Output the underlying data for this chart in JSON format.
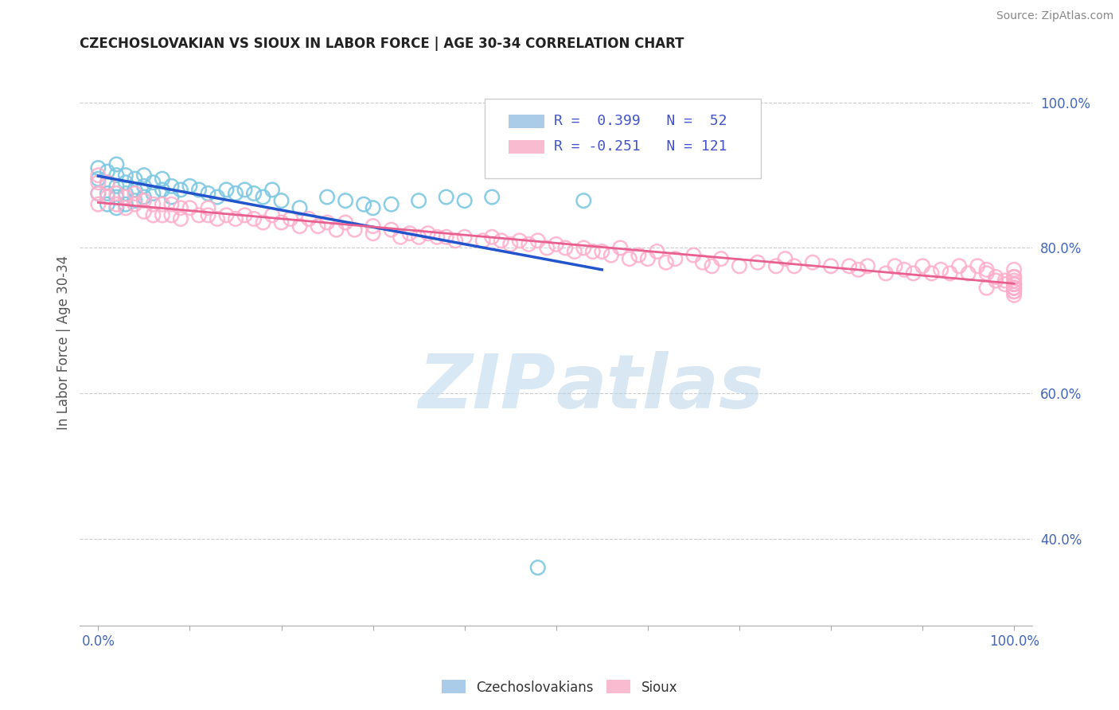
{
  "title": "CZECHOSLOVAKIAN VS SIOUX IN LABOR FORCE | AGE 30-34 CORRELATION CHART",
  "source": "Source: ZipAtlas.com",
  "ylabel": "In Labor Force | Age 30-34",
  "xlim": [
    -0.02,
    1.02
  ],
  "ylim": [
    0.28,
    1.06
  ],
  "xtick_pos": [
    0.0,
    0.1,
    0.2,
    0.3,
    0.4,
    0.5,
    0.6,
    0.7,
    0.8,
    0.9,
    1.0
  ],
  "xtick_labels": [
    "0.0%",
    "",
    "",
    "",
    "",
    "",
    "",
    "",
    "",
    "",
    "100.0%"
  ],
  "ytick_pos": [
    0.4,
    0.6,
    0.8,
    1.0
  ],
  "ytick_labels": [
    "40.0%",
    "60.0%",
    "80.0%",
    "100.0%"
  ],
  "czech_color": "#7ec8e3",
  "sioux_color": "#ffaec9",
  "czech_line_color": "#2255cc",
  "sioux_line_color": "#e86090",
  "background_color": "#ffffff",
  "grid_color": "#cccccc",
  "watermark_color": "#c8dff0",
  "czech_x": [
    0.0,
    0.0,
    0.0,
    0.01,
    0.01,
    0.01,
    0.01,
    0.02,
    0.02,
    0.02,
    0.02,
    0.02,
    0.03,
    0.03,
    0.03,
    0.03,
    0.04,
    0.04,
    0.04,
    0.05,
    0.05,
    0.05,
    0.06,
    0.06,
    0.07,
    0.07,
    0.08,
    0.08,
    0.09,
    0.1,
    0.11,
    0.12,
    0.13,
    0.14,
    0.15,
    0.16,
    0.17,
    0.18,
    0.19,
    0.2,
    0.22,
    0.25,
    0.27,
    0.29,
    0.3,
    0.32,
    0.35,
    0.38,
    0.4,
    0.43,
    0.48,
    0.53
  ],
  "czech_y": [
    0.875,
    0.895,
    0.91,
    0.86,
    0.875,
    0.89,
    0.905,
    0.855,
    0.87,
    0.885,
    0.9,
    0.915,
    0.86,
    0.875,
    0.89,
    0.9,
    0.865,
    0.88,
    0.895,
    0.87,
    0.885,
    0.9,
    0.875,
    0.89,
    0.88,
    0.895,
    0.87,
    0.885,
    0.88,
    0.885,
    0.88,
    0.875,
    0.87,
    0.88,
    0.875,
    0.88,
    0.875,
    0.87,
    0.88,
    0.865,
    0.855,
    0.87,
    0.865,
    0.86,
    0.855,
    0.86,
    0.865,
    0.87,
    0.865,
    0.87,
    0.36,
    0.865
  ],
  "sioux_x": [
    0.0,
    0.0,
    0.0,
    0.0,
    0.01,
    0.01,
    0.02,
    0.02,
    0.03,
    0.03,
    0.04,
    0.04,
    0.05,
    0.05,
    0.06,
    0.06,
    0.07,
    0.07,
    0.08,
    0.08,
    0.09,
    0.09,
    0.1,
    0.11,
    0.12,
    0.12,
    0.13,
    0.14,
    0.15,
    0.16,
    0.17,
    0.18,
    0.19,
    0.2,
    0.21,
    0.22,
    0.23,
    0.24,
    0.25,
    0.26,
    0.27,
    0.28,
    0.3,
    0.3,
    0.32,
    0.33,
    0.34,
    0.35,
    0.36,
    0.37,
    0.38,
    0.39,
    0.4,
    0.42,
    0.43,
    0.44,
    0.45,
    0.46,
    0.47,
    0.48,
    0.49,
    0.5,
    0.51,
    0.52,
    0.53,
    0.54,
    0.55,
    0.56,
    0.57,
    0.58,
    0.59,
    0.6,
    0.61,
    0.62,
    0.63,
    0.65,
    0.66,
    0.67,
    0.68,
    0.7,
    0.72,
    0.74,
    0.75,
    0.76,
    0.78,
    0.8,
    0.82,
    0.83,
    0.84,
    0.86,
    0.87,
    0.88,
    0.89,
    0.9,
    0.91,
    0.92,
    0.93,
    0.94,
    0.95,
    0.96,
    0.97,
    0.97,
    0.97,
    0.98,
    0.98,
    0.99,
    0.99,
    1.0,
    1.0,
    1.0,
    1.0,
    1.0,
    1.0,
    1.0,
    1.0,
    1.0,
    1.0,
    1.0,
    1.0,
    1.0,
    1.0
  ],
  "sioux_y": [
    0.89,
    0.875,
    0.86,
    0.9,
    0.87,
    0.89,
    0.86,
    0.875,
    0.87,
    0.855,
    0.875,
    0.86,
    0.865,
    0.85,
    0.86,
    0.845,
    0.86,
    0.845,
    0.86,
    0.845,
    0.855,
    0.84,
    0.855,
    0.845,
    0.845,
    0.855,
    0.84,
    0.845,
    0.84,
    0.845,
    0.84,
    0.835,
    0.845,
    0.835,
    0.84,
    0.83,
    0.84,
    0.83,
    0.835,
    0.825,
    0.835,
    0.825,
    0.83,
    0.82,
    0.825,
    0.815,
    0.82,
    0.815,
    0.82,
    0.815,
    0.815,
    0.81,
    0.815,
    0.81,
    0.815,
    0.81,
    0.805,
    0.81,
    0.805,
    0.81,
    0.8,
    0.805,
    0.8,
    0.795,
    0.8,
    0.795,
    0.795,
    0.79,
    0.8,
    0.785,
    0.79,
    0.785,
    0.795,
    0.78,
    0.785,
    0.79,
    0.78,
    0.775,
    0.785,
    0.775,
    0.78,
    0.775,
    0.785,
    0.775,
    0.78,
    0.775,
    0.775,
    0.77,
    0.775,
    0.765,
    0.775,
    0.77,
    0.765,
    0.775,
    0.765,
    0.77,
    0.765,
    0.775,
    0.765,
    0.775,
    0.77,
    0.765,
    0.745,
    0.755,
    0.76,
    0.75,
    0.755,
    0.77,
    0.76,
    0.745,
    0.755,
    0.74,
    0.76,
    0.75,
    0.75,
    0.74,
    0.745,
    0.76,
    0.75,
    0.745,
    0.735
  ]
}
